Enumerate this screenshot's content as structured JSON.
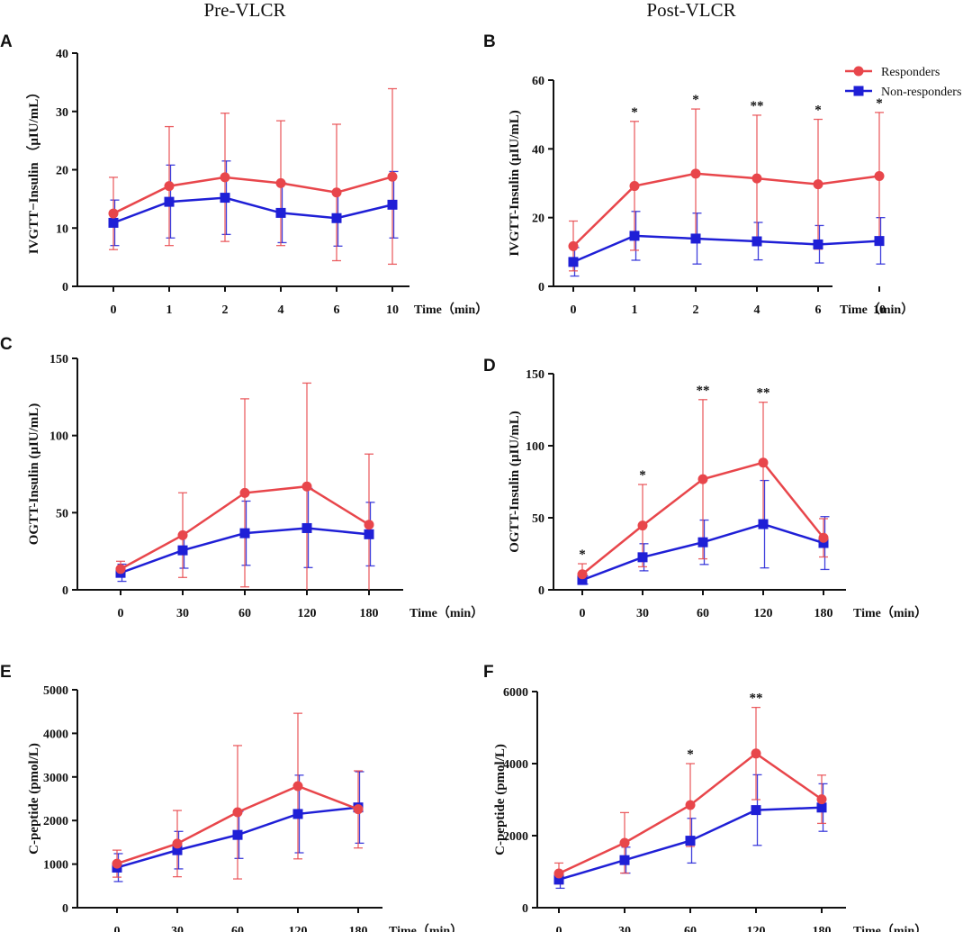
{
  "column_titles": [
    "Pre-VLCR",
    "Post-VLCR"
  ],
  "legend": {
    "responders": "Responders",
    "non_responders": "Non-responders"
  },
  "colors": {
    "responders": "#e8464b",
    "non_responders": "#1f1fd6"
  },
  "chart_data": [
    {
      "panel": "A",
      "type": "line",
      "ylabel": "IVGTT−Insulin （μIU/mL）",
      "xlabel": "Time（min）",
      "categories": [
        "0",
        "1",
        "2",
        "4",
        "6",
        "10"
      ],
      "ylim": [
        0,
        40
      ],
      "yticks": [
        0,
        10,
        20,
        30,
        40
      ],
      "series": [
        {
          "name": "Responders",
          "values": [
            12.5,
            17.2,
            18.7,
            17.7,
            16.1,
            18.8
          ],
          "upper": [
            18.7,
            27.4,
            29.7,
            28.4,
            27.8,
            33.9
          ],
          "lower": [
            6.3,
            7.0,
            7.7,
            7.0,
            4.4,
            3.8
          ]
        },
        {
          "name": "Non-responders",
          "values": [
            10.9,
            14.5,
            15.2,
            12.6,
            11.7,
            14.0
          ],
          "upper": [
            14.8,
            20.8,
            21.5,
            17.7,
            16.4,
            19.7
          ],
          "lower": [
            7.0,
            8.3,
            8.9,
            7.5,
            6.9,
            8.3
          ]
        }
      ],
      "annotations": []
    },
    {
      "panel": "B",
      "type": "line",
      "ylabel": "IVGTT-Insulin (μIU/mL)",
      "xlabel": "Time（min）",
      "categories": [
        "0",
        "1",
        "2",
        "4",
        "6",
        "10"
      ],
      "ylim": [
        0,
        60
      ],
      "yticks": [
        0,
        20,
        40,
        60
      ],
      "series": [
        {
          "name": "Responders",
          "values": [
            11.7,
            29.2,
            32.8,
            31.4,
            29.7,
            32.1
          ],
          "upper": [
            19.0,
            48.0,
            51.6,
            49.8,
            48.6,
            50.6
          ],
          "lower": [
            4.5,
            10.5,
            14.0,
            13.0,
            10.8,
            13.6
          ]
        },
        {
          "name": "Non-responders",
          "values": [
            7.1,
            14.7,
            13.9,
            13.1,
            12.2,
            13.2
          ],
          "upper": [
            11.3,
            21.8,
            21.3,
            18.6,
            17.7,
            20.0
          ],
          "lower": [
            3.0,
            7.6,
            6.5,
            7.7,
            6.8,
            6.5
          ]
        }
      ],
      "annotations": [
        "",
        "*",
        "*",
        "**",
        "*",
        "*"
      ],
      "legend_position": "top-right"
    },
    {
      "panel": "C",
      "type": "line",
      "ylabel": "OGTT-Insulin (μIU/mL)",
      "xlabel": "Time（min）",
      "categories": [
        "0",
        "30",
        "60",
        "120",
        "180"
      ],
      "ylim": [
        0,
        150
      ],
      "yticks": [
        0,
        50,
        100,
        150
      ],
      "series": [
        {
          "name": "Responders",
          "values": [
            13.5,
            35.4,
            62.8,
            67.0,
            42.2
          ],
          "upper": [
            18.5,
            62.9,
            123.8,
            134.0,
            88.0
          ],
          "lower": [
            8.5,
            8.0,
            1.9,
            0.0,
            0.0
          ]
        },
        {
          "name": "Non-responders",
          "values": [
            11.0,
            25.6,
            36.7,
            40.0,
            36.0
          ],
          "upper": [
            16.6,
            37.5,
            57.5,
            65.7,
            56.7
          ],
          "lower": [
            5.5,
            14.0,
            15.9,
            14.4,
            15.5
          ]
        }
      ],
      "annotations": []
    },
    {
      "panel": "D",
      "type": "line",
      "ylabel": "OGTT-Insulin (μIU/mL)",
      "xlabel": "Time（min）",
      "categories": [
        "0",
        "30",
        "60",
        "120",
        "180"
      ],
      "ylim": [
        0,
        150
      ],
      "yticks": [
        0,
        50,
        100,
        150
      ],
      "series": [
        {
          "name": "Responders",
          "values": [
            10.8,
            44.6,
            76.8,
            88.3,
            36.1
          ],
          "upper": [
            18.1,
            73.1,
            132.0,
            130.2,
            49.4
          ],
          "lower": [
            4.0,
            16.0,
            21.5,
            46.4,
            22.8
          ]
        },
        {
          "name": "Non-responders",
          "values": [
            6.8,
            22.6,
            33.0,
            45.6,
            32.5
          ],
          "upper": [
            9.8,
            32.0,
            48.4,
            75.9,
            50.8
          ],
          "lower": [
            4.0,
            13.2,
            17.6,
            15.2,
            14.1
          ]
        }
      ],
      "annotations": [
        "*",
        "*",
        "**",
        "**",
        ""
      ]
    },
    {
      "panel": "E",
      "type": "line",
      "ylabel": "C-peptide (pmol/L)",
      "xlabel": "Time（min）",
      "categories": [
        "0",
        "30",
        "60",
        "120",
        "180"
      ],
      "ylim": [
        0,
        5000
      ],
      "yticks": [
        0,
        1000,
        2000,
        3000,
        4000,
        5000
      ],
      "series": [
        {
          "name": "Responders",
          "values": [
            1010,
            1470,
            2190,
            2790,
            2260
          ],
          "upper": [
            1320,
            2230,
            3720,
            4460,
            3140
          ],
          "lower": [
            700,
            710,
            660,
            1120,
            1370
          ]
        },
        {
          "name": "Non-responders",
          "values": [
            920,
            1320,
            1670,
            2150,
            2300
          ],
          "upper": [
            1240,
            1750,
            2210,
            3040,
            3120
          ],
          "lower": [
            600,
            890,
            1130,
            1260,
            1480
          ]
        }
      ],
      "annotations": []
    },
    {
      "panel": "F",
      "type": "line",
      "ylabel": "C-peptide (pmol/L)",
      "xlabel": "Time（min）",
      "categories": [
        "0",
        "30",
        "60",
        "120",
        "180"
      ],
      "ylim": [
        0,
        6000
      ],
      "yticks": [
        0,
        2000,
        4000,
        6000
      ],
      "series": [
        {
          "name": "Responders",
          "values": [
            950,
            1800,
            2850,
            4280,
            3010
          ],
          "upper": [
            1240,
            2640,
            4000,
            5560,
            3680
          ],
          "lower": [
            660,
            960,
            1700,
            3000,
            2340
          ]
        },
        {
          "name": "Non-responders",
          "values": [
            780,
            1320,
            1860,
            2710,
            2780
          ],
          "upper": [
            1020,
            1680,
            2480,
            3690,
            3440
          ],
          "lower": [
            540,
            960,
            1240,
            1730,
            2120
          ]
        }
      ],
      "annotations": [
        "",
        "",
        "*",
        "**",
        ""
      ]
    }
  ]
}
